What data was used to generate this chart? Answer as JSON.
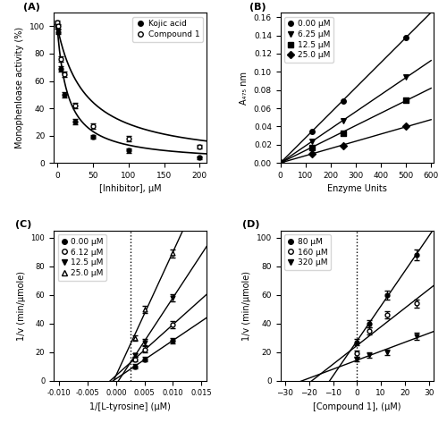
{
  "panel_A": {
    "xlabel": "[Inhibitor], μM",
    "ylabel": "Monophenloase activity (%)",
    "kojic_x": [
      0,
      1,
      5,
      10,
      25,
      50,
      100,
      200
    ],
    "kojic_y": [
      100,
      96,
      69,
      50,
      30,
      19,
      9,
      4
    ],
    "kojic_yerr": [
      1.5,
      1.5,
      2,
      2,
      2,
      1.5,
      1.5,
      1
    ],
    "compound_x": [
      0,
      1,
      5,
      10,
      25,
      50,
      100,
      200
    ],
    "compound_y": [
      103,
      100,
      76,
      65,
      42,
      27,
      18,
      12
    ],
    "compound_yerr": [
      1.5,
      1.5,
      2,
      2,
      2,
      2,
      2,
      1.5
    ],
    "xlim": [
      -5,
      210
    ],
    "ylim": [
      0,
      110
    ],
    "xticks": [
      0,
      50,
      100,
      150,
      200
    ],
    "yticks": [
      0,
      20,
      40,
      60,
      80,
      100
    ]
  },
  "panel_B": {
    "xlabel": "Enzyme Units",
    "ylabel": "A₄₇₅ nm",
    "series": [
      {
        "label": "0.00 μM",
        "marker": "o",
        "x": [
          0,
          125,
          250,
          500
        ],
        "y": [
          0,
          0.035,
          0.068,
          0.138
        ]
      },
      {
        "label": "6.25 μM",
        "marker": "v",
        "x": [
          0,
          125,
          250,
          500
        ],
        "y": [
          0,
          0.024,
          0.046,
          0.094
        ]
      },
      {
        "label": "12.5 μM",
        "marker": "s",
        "x": [
          0,
          125,
          250,
          500
        ],
        "y": [
          0,
          0.017,
          0.033,
          0.069
        ]
      },
      {
        "label": "25.0 μM",
        "marker": "D",
        "x": [
          0,
          125,
          250,
          500
        ],
        "y": [
          0,
          0.01,
          0.019,
          0.04
        ]
      }
    ],
    "xlim": [
      0,
      610
    ],
    "ylim": [
      0,
      0.165
    ],
    "xticks": [
      0,
      100,
      200,
      300,
      400,
      500,
      600
    ],
    "yticks": [
      0.0,
      0.02,
      0.04,
      0.06,
      0.08,
      0.1,
      0.12,
      0.14,
      0.16
    ]
  },
  "panel_C": {
    "xlabel": "1/[L-tyrosine] (μM)",
    "ylabel": "1/v (min/μmole)",
    "series": [
      {
        "label": "0.00 μM",
        "marker": "o",
        "filled": true,
        "x": [
          0.00333,
          0.005,
          0.01
        ],
        "y": [
          10,
          15,
          28
        ],
        "yerr": [
          1.5,
          1.5,
          2.0
        ]
      },
      {
        "label": "6.12 μM",
        "marker": "o",
        "filled": false,
        "x": [
          0.00333,
          0.005,
          0.01
        ],
        "y": [
          15,
          22,
          39
        ],
        "yerr": [
          1.5,
          2.0,
          2.5
        ]
      },
      {
        "label": "12.5 μM",
        "marker": "v",
        "filled": true,
        "x": [
          0.00333,
          0.005,
          0.01
        ],
        "y": [
          18,
          27,
          58
        ],
        "yerr": [
          1.5,
          2.0,
          2.5
        ]
      },
      {
        "label": "25.0 μM",
        "marker": "^",
        "filled": false,
        "x": [
          0.00333,
          0.005,
          0.01
        ],
        "y": [
          30,
          50,
          89
        ],
        "yerr": [
          2.0,
          2.5,
          3.0
        ]
      }
    ],
    "xlim": [
      -0.011,
      0.016
    ],
    "ylim": [
      0,
      105
    ],
    "xticks": [
      -0.01,
      -0.005,
      0.0,
      0.005,
      0.01,
      0.015
    ],
    "yticks": [
      0,
      20,
      40,
      60,
      80,
      100
    ],
    "vline": 0.0025
  },
  "panel_D": {
    "xlabel": "[Compound 1], (μM)",
    "ylabel": "1/v (min/μmole)",
    "series": [
      {
        "label": "80 μM",
        "marker": "o",
        "filled": true,
        "x": [
          0,
          5,
          12.5,
          25
        ],
        "y": [
          27,
          40,
          60,
          88
        ],
        "yerr": [
          2,
          2.5,
          3,
          3.5
        ]
      },
      {
        "label": "160 μM",
        "marker": "o",
        "filled": false,
        "x": [
          0,
          5,
          12.5,
          25
        ],
        "y": [
          19,
          35,
          46,
          54
        ],
        "yerr": [
          2,
          2.5,
          2.5,
          3
        ]
      },
      {
        "label": "320 μM",
        "marker": "v",
        "filled": true,
        "x": [
          0,
          5,
          12.5,
          25
        ],
        "y": [
          15,
          18,
          20,
          31
        ],
        "yerr": [
          1.5,
          2,
          2,
          2.5
        ]
      }
    ],
    "xlim": [
      -32,
      32
    ],
    "ylim": [
      0,
      105
    ],
    "xticks": [
      -30,
      -20,
      -10,
      0,
      10,
      20,
      30
    ],
    "yticks": [
      0,
      20,
      40,
      60,
      80,
      100
    ],
    "vline": 0.0
  }
}
